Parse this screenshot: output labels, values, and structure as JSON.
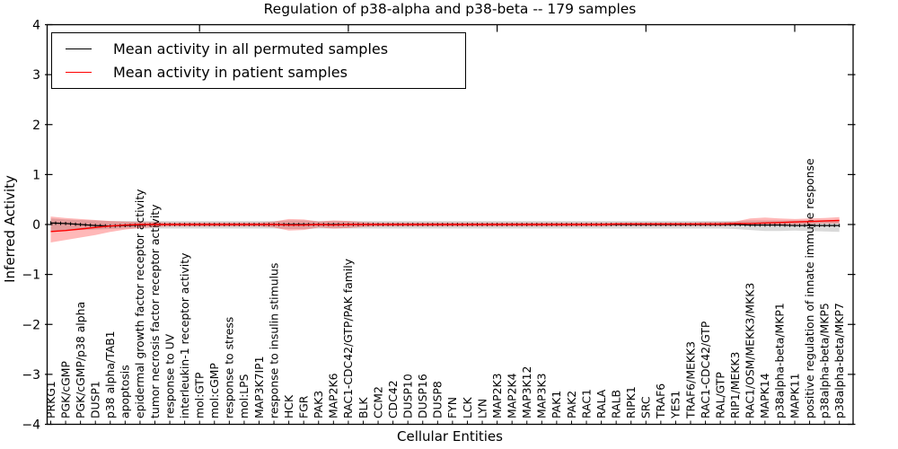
{
  "figure": {
    "title": "Regulation of p38-alpha and p38-beta -- 179 samples",
    "xlabel": "Cellular Entities",
    "ylabel": "Inferred Activity"
  },
  "legend": {
    "items": [
      {
        "label": "Mean activity in all permuted samples",
        "color": "#000000"
      },
      {
        "label": "Mean activity in patient samples",
        "color": "#ff0000"
      }
    ]
  },
  "chart_data": {
    "type": "line",
    "title": "Regulation of p38-alpha and p38-beta -- 179 samples",
    "xlabel": "Cellular Entities",
    "ylabel": "Inferred Activity",
    "ylim": [
      -4,
      4
    ],
    "yticks": [
      -4,
      -3,
      -2,
      -1,
      0,
      1,
      2,
      3,
      4
    ],
    "grid": false,
    "legend_position": "upper left",
    "categories": [
      "PRKG1",
      "PGK/cGMP",
      "PGK/cGMP/p38 alpha",
      "DUSP1",
      "p38 alpha/TAB1",
      "apoptosis",
      "epidermal growth factor receptor activity",
      "tumor necrosis factor receptor activity",
      "response to UV",
      "interleukin-1 receptor activity",
      "mol:GTP",
      "mol:cGMP",
      "response to stress",
      "mol:LPS",
      "MAP3K7IP1",
      "response to insulin stimulus",
      "HCK",
      "FGR",
      "PAK3",
      "MAP2K6",
      "RAC1-CDC42/GTP/PAK family",
      "BLK",
      "CCM2",
      "CDC42",
      "DUSP10",
      "DUSP16",
      "DUSP8",
      "FYN",
      "LCK",
      "LYN",
      "MAP2K3",
      "MAP2K4",
      "MAP3K12",
      "MAP3K3",
      "PAK1",
      "PAK2",
      "RAC1",
      "RALA",
      "RALB",
      "RIPK1",
      "SRC",
      "TRAF6",
      "YES1",
      "TRAF6/MEKK3",
      "RAC1-CDC42/GTP",
      "RAL/GTP",
      "RIP1/MEKK3",
      "RAC1/OSM/MEKK3/MKK3",
      "MAPK14",
      "p38alpha-beta/MKP1",
      "MAPK11",
      "positive regulation of innate immune response",
      "p38alpha-beta/MKP5",
      "p38alpha-beta/MKP7"
    ],
    "series": [
      {
        "name": "Mean activity in all permuted samples",
        "color": "#000000",
        "band_color": "rgba(0,0,0,0.15)",
        "mean": [
          0.03,
          0.02,
          0,
          -0.02,
          -0.03,
          -0.02,
          -0.01,
          0,
          0,
          0,
          0,
          0,
          0,
          0,
          0,
          0,
          0,
          0,
          0,
          0,
          0,
          0,
          0,
          0,
          0,
          0,
          0,
          0,
          0,
          0,
          0,
          0,
          0,
          0,
          0,
          0,
          0,
          0,
          0,
          0,
          0,
          0,
          0,
          0,
          0,
          0,
          0,
          -0.01,
          -0.01,
          -0.01,
          -0.02,
          -0.02,
          -0.02,
          -0.02
        ],
        "upper": [
          0.12,
          0.1,
          0.09,
          0.08,
          0.07,
          0.07,
          0.07,
          0.07,
          0.07,
          0.07,
          0.07,
          0.07,
          0.07,
          0.07,
          0.07,
          0.07,
          0.08,
          0.08,
          0.07,
          0.07,
          0.07,
          0.07,
          0.07,
          0.07,
          0.07,
          0.07,
          0.07,
          0.07,
          0.07,
          0.07,
          0.07,
          0.07,
          0.07,
          0.07,
          0.07,
          0.07,
          0.07,
          0.07,
          0.07,
          0.07,
          0.07,
          0.07,
          0.07,
          0.07,
          0.07,
          0.07,
          0.07,
          0.08,
          0.08,
          0.08,
          0.08,
          0.08,
          0.09,
          0.09
        ],
        "lower": [
          -0.14,
          -0.12,
          -0.11,
          -0.1,
          -0.09,
          -0.08,
          -0.08,
          -0.08,
          -0.08,
          -0.08,
          -0.08,
          -0.08,
          -0.08,
          -0.08,
          -0.08,
          -0.08,
          -0.09,
          -0.09,
          -0.08,
          -0.08,
          -0.08,
          -0.08,
          -0.08,
          -0.08,
          -0.08,
          -0.08,
          -0.08,
          -0.08,
          -0.08,
          -0.08,
          -0.08,
          -0.08,
          -0.08,
          -0.08,
          -0.08,
          -0.08,
          -0.08,
          -0.08,
          -0.08,
          -0.08,
          -0.08,
          -0.08,
          -0.08,
          -0.08,
          -0.08,
          -0.08,
          -0.09,
          -0.11,
          -0.13,
          -0.13,
          -0.12,
          -0.13,
          -0.14,
          -0.15
        ]
      },
      {
        "name": "Mean activity in patient samples",
        "color": "#ff0000",
        "band_color": "rgba(255,0,0,0.28)",
        "mean": [
          -0.14,
          -0.12,
          -0.09,
          -0.06,
          -0.03,
          -0.01,
          0,
          0,
          0,
          0,
          0,
          0,
          0,
          0,
          0,
          0,
          -0.01,
          -0.01,
          0,
          -0.01,
          0,
          0,
          0,
          0,
          0,
          0,
          0,
          0,
          0,
          0,
          0,
          0,
          0,
          0,
          0,
          0,
          0,
          0,
          0.01,
          0.01,
          0.01,
          0.01,
          0.01,
          0.01,
          0.01,
          0.01,
          0.02,
          0.02,
          0.03,
          0.04,
          0.05,
          0.06,
          0.07,
          0.08
        ],
        "upper": [
          0.16,
          0.13,
          0.11,
          0.09,
          0.07,
          0.06,
          0.05,
          0.05,
          0.04,
          0.04,
          0.04,
          0.04,
          0.04,
          0.04,
          0.04,
          0.06,
          0.11,
          0.1,
          0.06,
          0.08,
          0.07,
          0.05,
          0.04,
          0.04,
          0.04,
          0.04,
          0.04,
          0.04,
          0.04,
          0.04,
          0.04,
          0.04,
          0.04,
          0.04,
          0.04,
          0.04,
          0.04,
          0.04,
          0.04,
          0.04,
          0.04,
          0.04,
          0.04,
          0.04,
          0.05,
          0.05,
          0.06,
          0.12,
          0.14,
          0.12,
          0.11,
          0.12,
          0.13,
          0.15
        ],
        "lower": [
          -0.36,
          -0.31,
          -0.26,
          -0.21,
          -0.15,
          -0.1,
          -0.07,
          -0.05,
          -0.04,
          -0.04,
          -0.04,
          -0.04,
          -0.04,
          -0.04,
          -0.04,
          -0.06,
          -0.12,
          -0.11,
          -0.06,
          -0.08,
          -0.07,
          -0.05,
          -0.04,
          -0.04,
          -0.04,
          -0.04,
          -0.04,
          -0.04,
          -0.04,
          -0.04,
          -0.04,
          -0.04,
          -0.04,
          -0.04,
          -0.04,
          -0.04,
          -0.04,
          -0.04,
          -0.03,
          -0.03,
          -0.03,
          -0.03,
          -0.03,
          -0.03,
          -0.03,
          -0.03,
          -0.02,
          -0.01,
          0,
          0,
          0,
          0.01,
          0.02,
          0.02
        ]
      }
    ]
  }
}
